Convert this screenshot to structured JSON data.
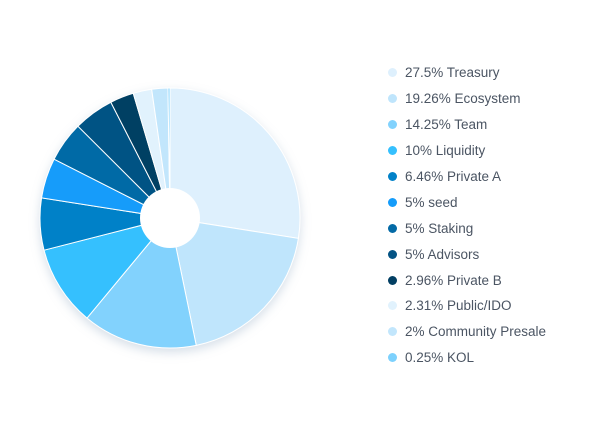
{
  "chart_data": {
    "type": "pie",
    "title": "",
    "legend_position": "right",
    "slices": [
      {
        "label": "27.5% Treasury",
        "value": 27.5,
        "color": "#def0fd"
      },
      {
        "label": "19.26% Ecosystem",
        "value": 19.26,
        "color": "#bfe5fc"
      },
      {
        "label": "14.25% Team",
        "value": 14.25,
        "color": "#82d2fd"
      },
      {
        "label": "10% Liquidity",
        "value": 10,
        "color": "#35c0fe"
      },
      {
        "label": "6.46% Private A",
        "value": 6.46,
        "color": "#0181c8"
      },
      {
        "label": "5% seed",
        "value": 5,
        "color": "#149cfa"
      },
      {
        "label": "5% Staking",
        "value": 5,
        "color": "#036aa6"
      },
      {
        "label": "5% Advisors",
        "value": 5,
        "color": "#045384"
      },
      {
        "label": "2.96% Private B",
        "value": 2.96,
        "color": "#023f63"
      },
      {
        "label": "2.31% Public/IDO",
        "value": 2.31,
        "color": "#e1f2fd"
      },
      {
        "label": "2% Community Presale",
        "value": 2,
        "color": "#c2e6fc"
      },
      {
        "label": "0.25% KOL",
        "value": 0.25,
        "color": "#7dd1fd"
      }
    ]
  }
}
